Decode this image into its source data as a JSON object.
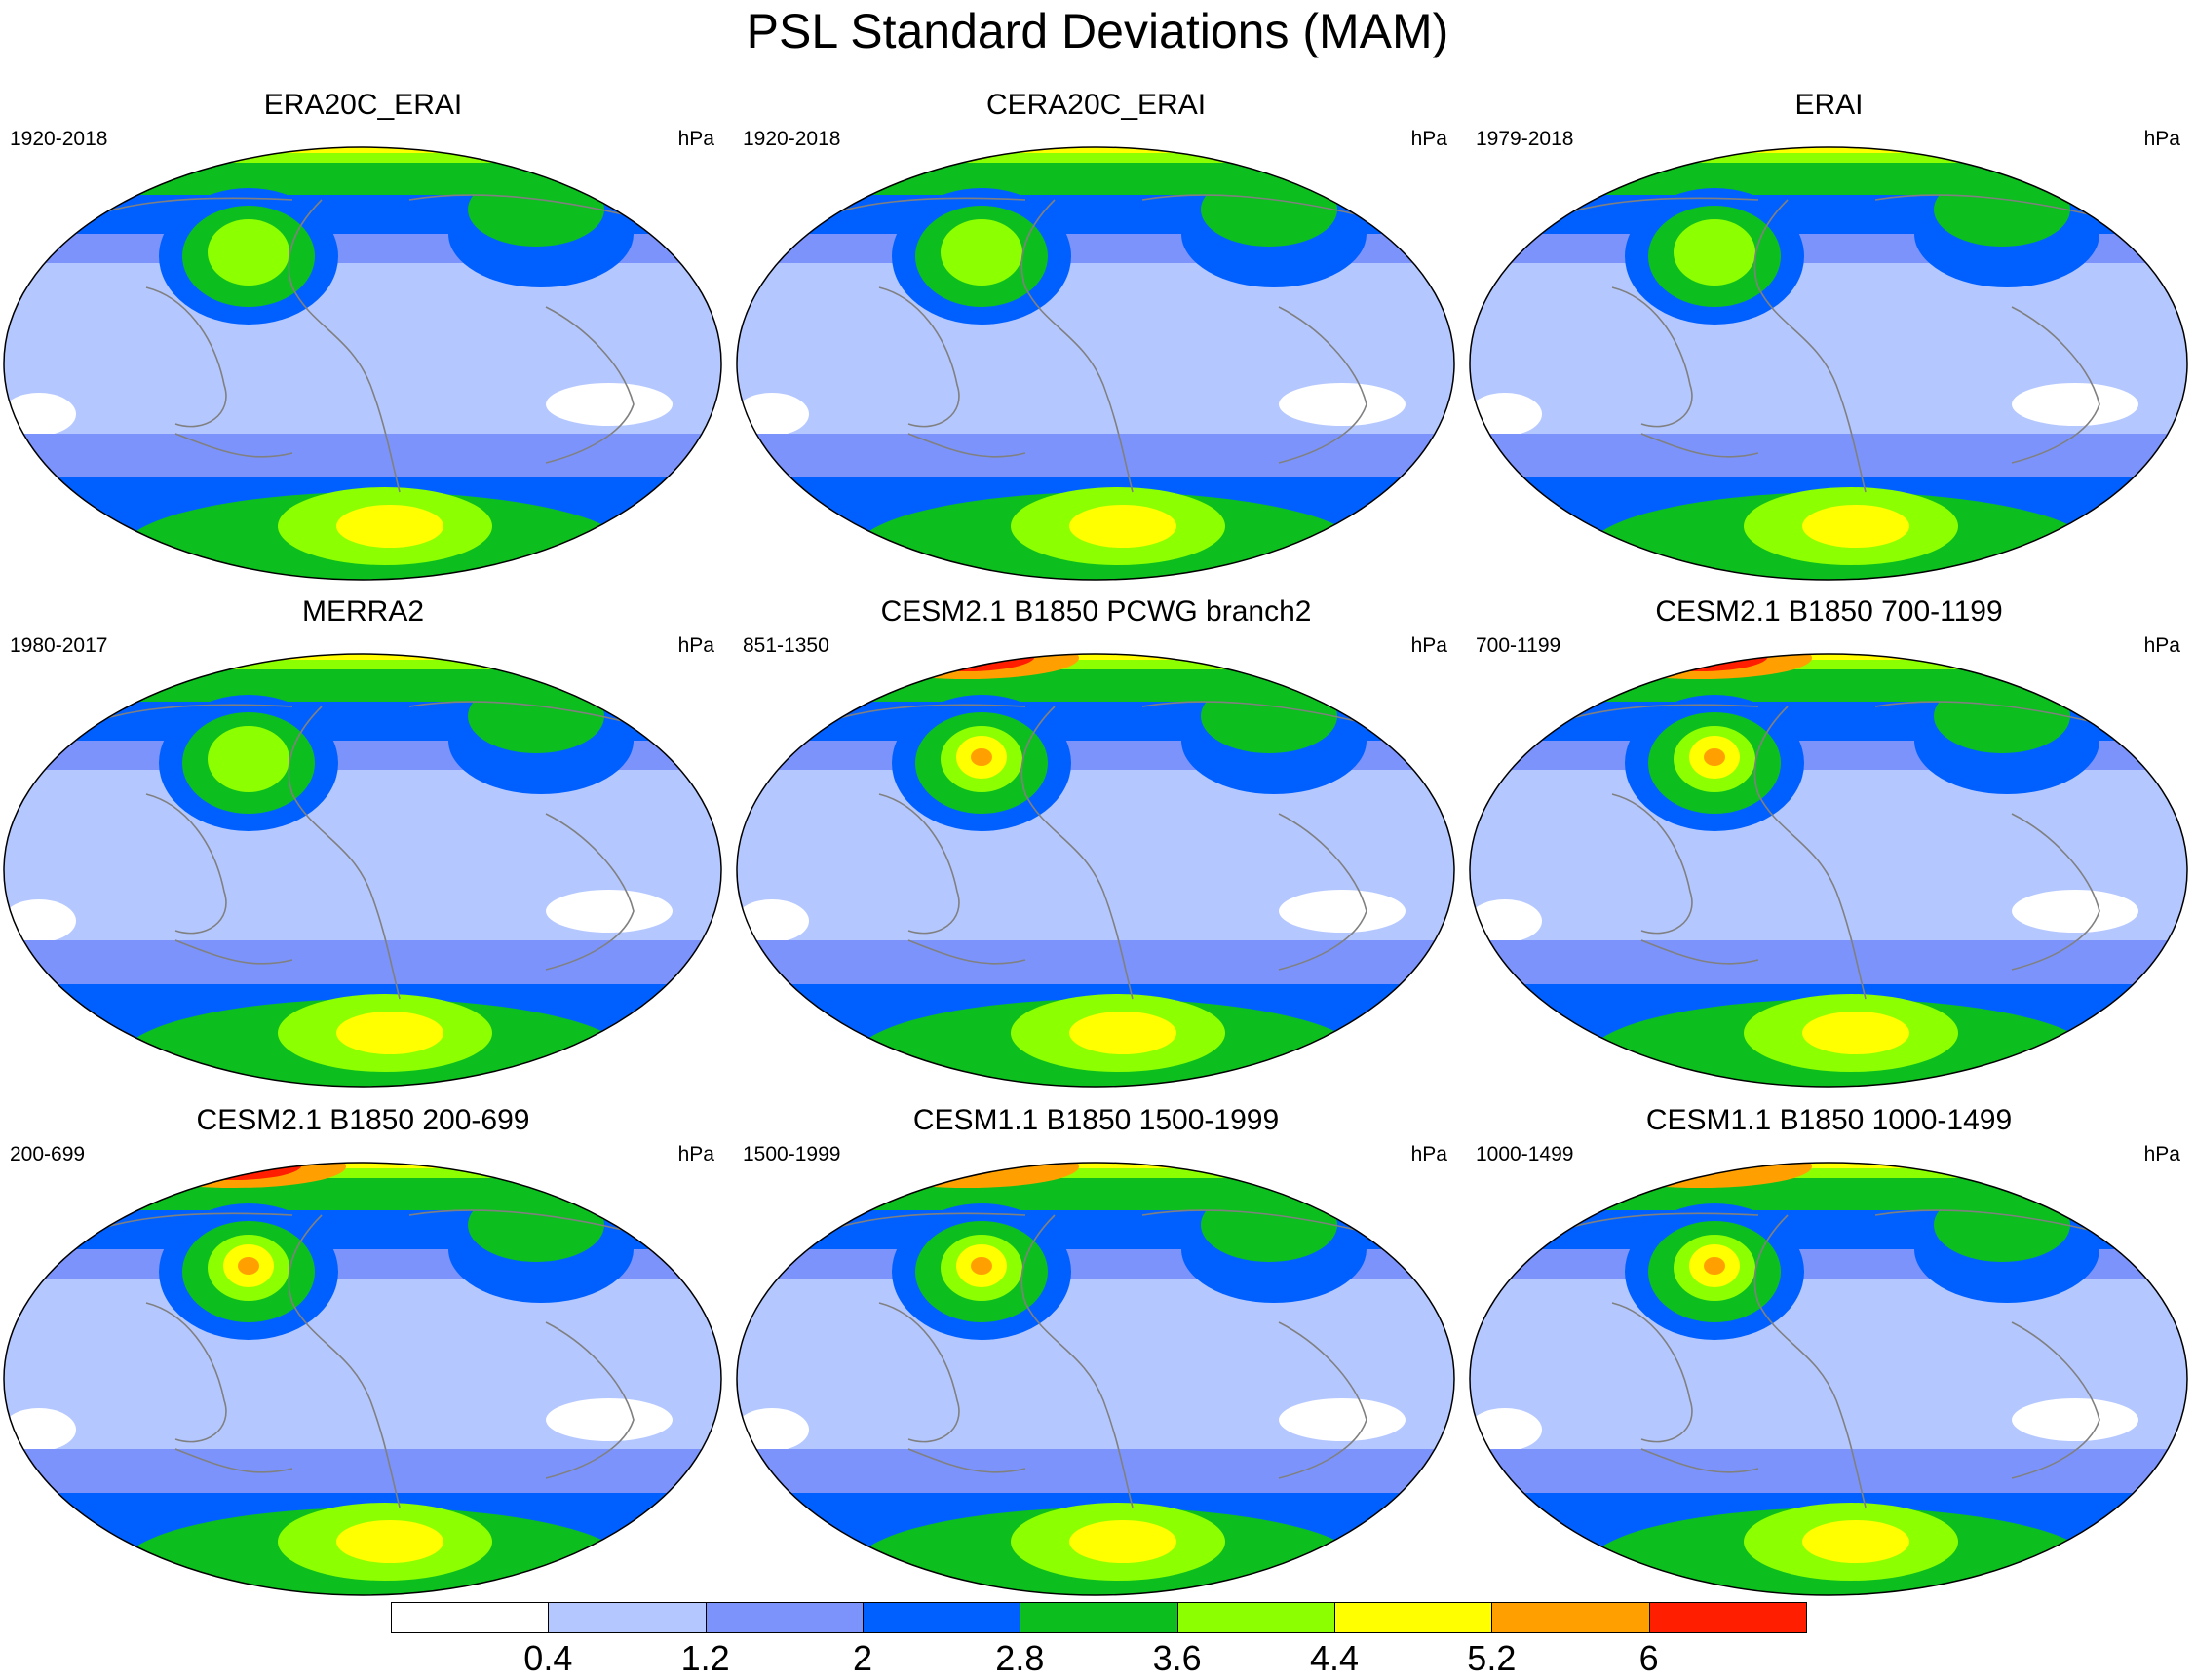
{
  "chart_data": {
    "type": "contour-map-panels",
    "title": "PSL Standard Deviations (MAM)",
    "units": "hPa",
    "season": "MAM",
    "variable": "PSL",
    "panels": [
      {
        "name": "ERA20C_ERAI",
        "period": "1920-2018",
        "units": "hPa"
      },
      {
        "name": "CERA20C_ERAI",
        "period": "1920-2018",
        "units": "hPa"
      },
      {
        "name": "ERAI",
        "period": "1979-2018",
        "units": "hPa"
      },
      {
        "name": "MERRA2",
        "period": "1980-2017",
        "units": "hPa"
      },
      {
        "name": "CESM2.1 B1850 PCWG branch2",
        "period": "851-1350",
        "units": "hPa"
      },
      {
        "name": "CESM2.1 B1850 700-1199",
        "period": "700-1199",
        "units": "hPa"
      },
      {
        "name": "CESM2.1 B1850 200-699",
        "period": "200-699",
        "units": "hPa"
      },
      {
        "name": "CESM1.1 B1850 1500-1999",
        "period": "1500-1999",
        "units": "hPa"
      },
      {
        "name": "CESM1.1 B1850 1000-1499",
        "period": "1000-1499",
        "units": "hPa"
      }
    ],
    "colorbar": {
      "levels": [
        "0.4",
        "1.2",
        "2",
        "2.8",
        "3.6",
        "4.4",
        "5.2",
        "6"
      ],
      "colors": [
        "#ffffff",
        "#b4c7ff",
        "#7c93fc",
        "#0060ff",
        "#0cbf1e",
        "#8cff00",
        "#ffff00",
        "#ffa000",
        "#ff1e00"
      ]
    }
  }
}
